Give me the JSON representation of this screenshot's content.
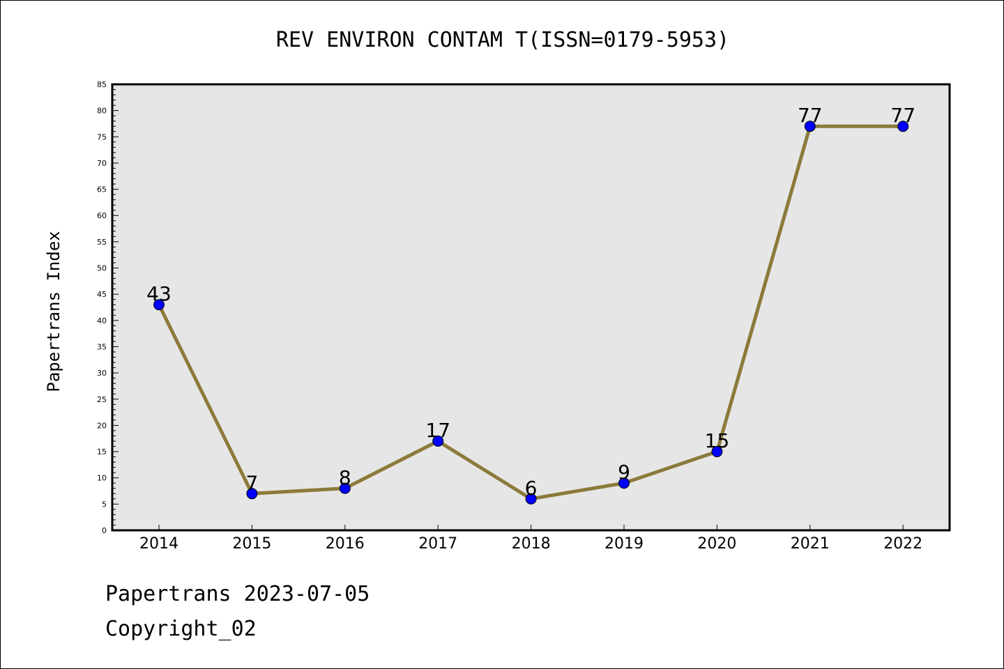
{
  "chart_data": {
    "type": "line",
    "title": "REV ENVIRON CONTAM T(ISSN=0179-5953)",
    "ylabel": "Papertrans Index",
    "xlabel": "",
    "categories": [
      "2014",
      "2015",
      "2016",
      "2017",
      "2018",
      "2019",
      "2020",
      "2021",
      "2022"
    ],
    "series": [
      {
        "values": [
          43,
          7,
          8,
          17,
          6,
          9,
          15,
          77,
          77
        ]
      }
    ],
    "ylim": [
      0,
      85
    ],
    "yticks": [
      0,
      5,
      10,
      15,
      20,
      25,
      30,
      35,
      40,
      45,
      50,
      55,
      60,
      65,
      70,
      75,
      80,
      85
    ],
    "data_labels": [
      "43",
      "7",
      "8",
      "17",
      "6",
      "9",
      "15",
      "77",
      "77"
    ],
    "grid": false,
    "colors": {
      "line": "#8b7a3a",
      "marker": "#0000ff",
      "plot_background": "#e6e6e6"
    }
  },
  "footer": {
    "date_line": "Papertrans 2023-07-05",
    "copyright_line": "Copyright_02"
  }
}
